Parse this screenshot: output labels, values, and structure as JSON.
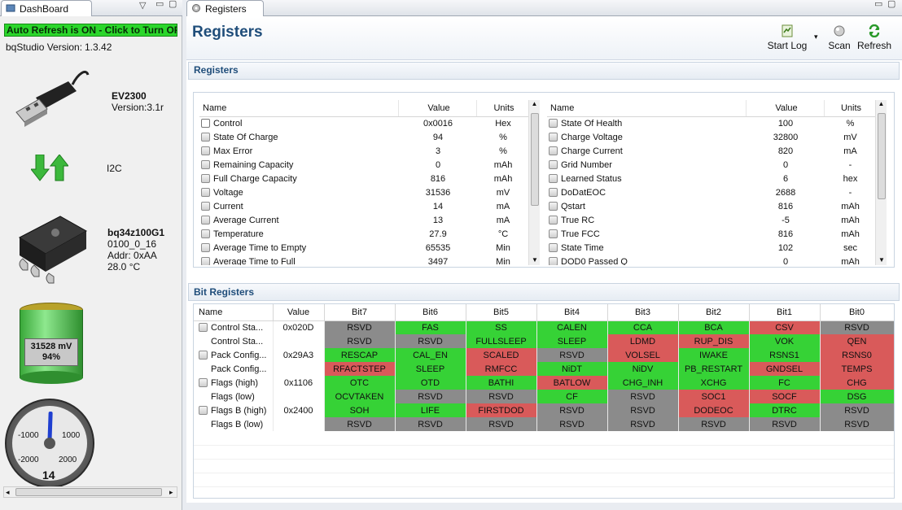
{
  "dashboard": {
    "tab_label": "DashBoard",
    "auto_refresh": "Auto Refresh is ON - Click to Turn OFF",
    "version_label": "bqStudio Version:",
    "version_value": "1.3.42",
    "adapter_name": "EV2300",
    "adapter_version": "Version:3.1r",
    "bus": "I2C",
    "device_name": "bq34z100G1",
    "device_fw": "0100_0_16",
    "device_addr": "Addr: 0xAA",
    "device_temp": "28.0 °C",
    "battery_voltage": "31528 mV",
    "battery_soc": "94%",
    "gauge_value": "14",
    "gauge_ticks": [
      "-1000",
      "1000",
      "-2000",
      "2000"
    ]
  },
  "registers_tab": {
    "label": "Registers"
  },
  "page_title": "Registers",
  "toolbar": {
    "start_log": "Start Log",
    "scan": "Scan",
    "refresh": "Refresh"
  },
  "registers_section": {
    "title": "Registers"
  },
  "left_table": {
    "headers": [
      "Name",
      "Value",
      "Units"
    ],
    "rows": [
      {
        "name": "Control",
        "value": "0x0016",
        "units": "Hex",
        "icon": "edit"
      },
      {
        "name": "State Of Charge",
        "value": "94",
        "units": "%",
        "icon": "lock"
      },
      {
        "name": "Max Error",
        "value": "3",
        "units": "%",
        "icon": "lock"
      },
      {
        "name": "Remaining Capacity",
        "value": "0",
        "units": "mAh",
        "icon": "lock"
      },
      {
        "name": "Full Charge Capacity",
        "value": "816",
        "units": "mAh",
        "icon": "lock"
      },
      {
        "name": "Voltage",
        "value": "31536",
        "units": "mV",
        "icon": "lock"
      },
      {
        "name": "Current",
        "value": "14",
        "units": "mA",
        "icon": "lock"
      },
      {
        "name": "Average Current",
        "value": "13",
        "units": "mA",
        "icon": "lock"
      },
      {
        "name": "Temperature",
        "value": "27.9",
        "units": "°C",
        "icon": "lock"
      },
      {
        "name": "Average Time to Empty",
        "value": "65535",
        "units": "Min",
        "icon": "lock"
      },
      {
        "name": "Average Time to Full",
        "value": "3497",
        "units": "Min",
        "icon": "lock"
      }
    ]
  },
  "right_table": {
    "headers": [
      "Name",
      "Value",
      "Units"
    ],
    "rows": [
      {
        "name": "State Of Health",
        "value": "100",
        "units": "%"
      },
      {
        "name": "Charge Voltage",
        "value": "32800",
        "units": "mV"
      },
      {
        "name": "Charge Current",
        "value": "820",
        "units": "mA"
      },
      {
        "name": "Grid Number",
        "value": "0",
        "units": "-"
      },
      {
        "name": "Learned Status",
        "value": "6",
        "units": "hex"
      },
      {
        "name": "DoDatEOC",
        "value": "2688",
        "units": "-"
      },
      {
        "name": "Qstart",
        "value": "816",
        "units": "mAh"
      },
      {
        "name": "True RC",
        "value": "-5",
        "units": "mAh"
      },
      {
        "name": "True FCC",
        "value": "816",
        "units": "mAh"
      },
      {
        "name": "State Time",
        "value": "102",
        "units": "sec"
      },
      {
        "name": "DOD0 Passed Q",
        "value": "0",
        "units": "mAh"
      }
    ]
  },
  "bit_section": {
    "title": "Bit Registers"
  },
  "bit_table": {
    "headers": [
      "Name",
      "Value",
      "Bit7",
      "Bit6",
      "Bit5",
      "Bit4",
      "Bit3",
      "Bit2",
      "Bit1",
      "Bit0"
    ],
    "rows": [
      {
        "name": "Control Sta...",
        "value": "0x020D",
        "lock": true,
        "bits": [
          [
            "RSVD",
            "x"
          ],
          [
            "FAS",
            "g"
          ],
          [
            "SS",
            "g"
          ],
          [
            "CALEN",
            "g"
          ],
          [
            "CCA",
            "g"
          ],
          [
            "BCA",
            "g"
          ],
          [
            "CSV",
            "r"
          ],
          [
            "RSVD",
            "x"
          ]
        ]
      },
      {
        "name": "Control Sta...",
        "value": "",
        "lock": false,
        "bits": [
          [
            "RSVD",
            "x"
          ],
          [
            "RSVD",
            "x"
          ],
          [
            "FULLSLEEP",
            "g"
          ],
          [
            "SLEEP",
            "g"
          ],
          [
            "LDMD",
            "r"
          ],
          [
            "RUP_DIS",
            "r"
          ],
          [
            "VOK",
            "g"
          ],
          [
            "QEN",
            "r"
          ]
        ]
      },
      {
        "name": "Pack Config...",
        "value": "0x29A3",
        "lock": true,
        "bits": [
          [
            "RESCAP",
            "g"
          ],
          [
            "CAL_EN",
            "g"
          ],
          [
            "SCALED",
            "r"
          ],
          [
            "RSVD",
            "x"
          ],
          [
            "VOLSEL",
            "r"
          ],
          [
            "IWAKE",
            "g"
          ],
          [
            "RSNS1",
            "g"
          ],
          [
            "RSNS0",
            "r"
          ]
        ]
      },
      {
        "name": "Pack Config...",
        "value": "",
        "lock": false,
        "bits": [
          [
            "RFACTSTEP",
            "r"
          ],
          [
            "SLEEP",
            "g"
          ],
          [
            "RMFCC",
            "r"
          ],
          [
            "NiDT",
            "g"
          ],
          [
            "NiDV",
            "g"
          ],
          [
            "PB_RESTART",
            "g"
          ],
          [
            "GNDSEL",
            "r"
          ],
          [
            "TEMPS",
            "r"
          ]
        ]
      },
      {
        "name": "Flags (high)",
        "value": "0x1106",
        "lock": true,
        "bits": [
          [
            "OTC",
            "g"
          ],
          [
            "OTD",
            "g"
          ],
          [
            "BATHI",
            "g"
          ],
          [
            "BATLOW",
            "r"
          ],
          [
            "CHG_INH",
            "g"
          ],
          [
            "XCHG",
            "g"
          ],
          [
            "FC",
            "g"
          ],
          [
            "CHG",
            "r"
          ]
        ]
      },
      {
        "name": "Flags (low)",
        "value": "",
        "lock": false,
        "bits": [
          [
            "OCVTAKEN",
            "g"
          ],
          [
            "RSVD",
            "x"
          ],
          [
            "RSVD",
            "x"
          ],
          [
            "CF",
            "g"
          ],
          [
            "RSVD",
            "x"
          ],
          [
            "SOC1",
            "r"
          ],
          [
            "SOCF",
            "r"
          ],
          [
            "DSG",
            "g"
          ]
        ]
      },
      {
        "name": "Flags B (high)",
        "value": "0x2400",
        "lock": true,
        "bits": [
          [
            "SOH",
            "g"
          ],
          [
            "LIFE",
            "g"
          ],
          [
            "FIRSTDOD",
            "r"
          ],
          [
            "RSVD",
            "x"
          ],
          [
            "RSVD",
            "x"
          ],
          [
            "DODEOC",
            "r"
          ],
          [
            "DTRC",
            "g"
          ],
          [
            "RSVD",
            "x"
          ]
        ]
      },
      {
        "name": "Flags B (low)",
        "value": "",
        "lock": false,
        "bits": [
          [
            "RSVD",
            "x"
          ],
          [
            "RSVD",
            "x"
          ],
          [
            "RSVD",
            "x"
          ],
          [
            "RSVD",
            "x"
          ],
          [
            "RSVD",
            "x"
          ],
          [
            "RSVD",
            "x"
          ],
          [
            "RSVD",
            "x"
          ],
          [
            "RSVD",
            "x"
          ]
        ]
      }
    ]
  }
}
